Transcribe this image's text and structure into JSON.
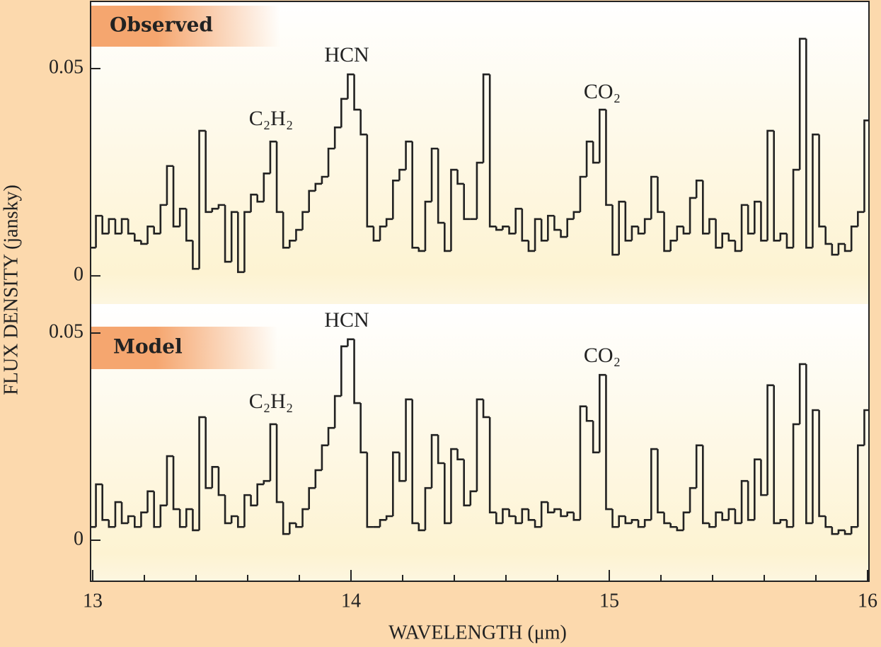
{
  "chart_data": [
    {
      "type": "line",
      "label": "Observed",
      "ylabel": "FLUX DENSITY (jansky)",
      "ylim": [
        -0.0068,
        0.0662
      ],
      "yticks": [
        0,
        0.05
      ],
      "color": "#222222",
      "annotations": [
        "HCN",
        "C₂H₂",
        "CO₂"
      ],
      "x": [
        13,
        13.025,
        13.05,
        13.075,
        13.1,
        13.125,
        13.15,
        13.175,
        13.2,
        13.225,
        13.25,
        13.275,
        13.3,
        13.325,
        13.35,
        13.375,
        13.4,
        13.425,
        13.45,
        13.475,
        13.5,
        13.525,
        13.55,
        13.575,
        13.6,
        13.625,
        13.65,
        13.675,
        13.7,
        13.725,
        13.75,
        13.775,
        13.8,
        13.825,
        13.85,
        13.875,
        13.9,
        13.925,
        13.95,
        13.975,
        14,
        14.025,
        14.05,
        14.075,
        14.1,
        14.125,
        14.15,
        14.175,
        14.2,
        14.225,
        14.25,
        14.275,
        14.3,
        14.325,
        14.35,
        14.375,
        14.4,
        14.425,
        14.45,
        14.475,
        14.5,
        14.525,
        14.55,
        14.575,
        14.6,
        14.625,
        14.65,
        14.675,
        14.7,
        14.725,
        14.75,
        14.775,
        14.8,
        14.825,
        14.85,
        14.875,
        14.9,
        14.925,
        14.95,
        14.975,
        15,
        15.025,
        15.05,
        15.075,
        15.1,
        15.125,
        15.15,
        15.175,
        15.2,
        15.225,
        15.25,
        15.275,
        15.3,
        15.325,
        15.35,
        15.375,
        15.4,
        15.425,
        15.45,
        15.475,
        15.5,
        15.525,
        15.55,
        15.575,
        15.6,
        15.625,
        15.65,
        15.675,
        15.7,
        15.725,
        15.75,
        15.775,
        15.8,
        15.825,
        15.85,
        15.875,
        15.9,
        15.925,
        15.95,
        15.975,
        16
      ],
      "values": [
        0.0068,
        0.0145,
        0.0102,
        0.0137,
        0.0102,
        0.0137,
        0.0102,
        0.0085,
        0.0077,
        0.0119,
        0.0102,
        0.0171,
        0.0265,
        0.0119,
        0.0162,
        0.0085,
        0.0017,
        0.035,
        0.0154,
        0.0162,
        0.0171,
        0.0034,
        0.0154,
        0.0009,
        0.0154,
        0.0196,
        0.0179,
        0.0247,
        0.0324,
        0.0154,
        0.0068,
        0.0085,
        0.0111,
        0.0154,
        0.0205,
        0.0222,
        0.0239,
        0.0307,
        0.0358,
        0.0427,
        0.0486,
        0.0401,
        0.0341,
        0.0119,
        0.0085,
        0.0119,
        0.0137,
        0.023,
        0.0256,
        0.0324,
        0.0068,
        0.006,
        0.0179,
        0.0307,
        0.0128,
        0.006,
        0.0256,
        0.0222,
        0.0137,
        0.0137,
        0.0273,
        0.0486,
        0.0119,
        0.0111,
        0.0119,
        0.0102,
        0.0162,
        0.0085,
        0.006,
        0.0137,
        0.0085,
        0.0145,
        0.0111,
        0.0094,
        0.0137,
        0.0154,
        0.0239,
        0.0324,
        0.0273,
        0.0401,
        0.0171,
        0.0051,
        0.0179,
        0.0085,
        0.0119,
        0.0102,
        0.0137,
        0.0239,
        0.0154,
        0.006,
        0.0085,
        0.0119,
        0.0102,
        0.0188,
        0.023,
        0.0102,
        0.0137,
        0.0068,
        0.0102,
        0.0085,
        0.006,
        0.0171,
        0.0102,
        0.0179,
        0.0085,
        0.035,
        0.0085,
        0.0102,
        0.0068,
        0.0256,
        0.0572,
        0.0068,
        0.0341,
        0.0119,
        0.0077,
        0.0051,
        0.0077,
        0.006,
        0.0119,
        0.0154,
        0.0375
      ]
    },
    {
      "type": "line",
      "label": "Model",
      "xlabel": "WAVELENGTH (μm)",
      "xlim": [
        13,
        16
      ],
      "xticks": [
        13,
        14,
        15,
        16
      ],
      "xminor_ticks": [
        13.2,
        13.4,
        13.6,
        13.8,
        14.2,
        14.4,
        14.6,
        14.8,
        15.2,
        15.4,
        15.6,
        15.8
      ],
      "ylim": [
        -0.0099,
        0.057
      ],
      "yticks": [
        0,
        0.05
      ],
      "color": "#222222",
      "annotations": [
        "HCN",
        "C₂H₂",
        "CO₂"
      ],
      "x": [
        13,
        13.025,
        13.05,
        13.075,
        13.1,
        13.125,
        13.15,
        13.175,
        13.2,
        13.225,
        13.25,
        13.275,
        13.3,
        13.325,
        13.35,
        13.375,
        13.4,
        13.425,
        13.45,
        13.475,
        13.5,
        13.525,
        13.55,
        13.575,
        13.6,
        13.625,
        13.65,
        13.675,
        13.7,
        13.725,
        13.75,
        13.775,
        13.8,
        13.825,
        13.85,
        13.875,
        13.9,
        13.925,
        13.95,
        13.975,
        14,
        14.025,
        14.05,
        14.075,
        14.1,
        14.125,
        14.15,
        14.175,
        14.2,
        14.225,
        14.25,
        14.275,
        14.3,
        14.325,
        14.35,
        14.375,
        14.4,
        14.425,
        14.45,
        14.475,
        14.5,
        14.525,
        14.55,
        14.575,
        14.6,
        14.625,
        14.65,
        14.675,
        14.7,
        14.725,
        14.75,
        14.775,
        14.8,
        14.825,
        14.85,
        14.875,
        14.9,
        14.925,
        14.95,
        14.975,
        15,
        15.025,
        15.05,
        15.075,
        15.1,
        15.125,
        15.15,
        15.175,
        15.2,
        15.225,
        15.25,
        15.275,
        15.3,
        15.325,
        15.35,
        15.375,
        15.4,
        15.425,
        15.45,
        15.475,
        15.5,
        15.525,
        15.55,
        15.575,
        15.6,
        15.625,
        15.65,
        15.675,
        15.7,
        15.725,
        15.75,
        15.775,
        15.8,
        15.825,
        15.85,
        15.875,
        15.9,
        15.925,
        15.95,
        15.975,
        16
      ],
      "values": [
        0.0032,
        0.0135,
        0.0049,
        0.0032,
        0.0092,
        0.0041,
        0.0058,
        0.0032,
        0.0067,
        0.0118,
        0.0032,
        0.0084,
        0.0203,
        0.0075,
        0.0032,
        0.0075,
        0.0024,
        0.0297,
        0.0126,
        0.0177,
        0.0109,
        0.0041,
        0.0058,
        0.0032,
        0.0109,
        0.0084,
        0.0135,
        0.0143,
        0.028,
        0.0092,
        0.0015,
        0.0041,
        0.0032,
        0.0075,
        0.0126,
        0.0169,
        0.0229,
        0.0271,
        0.0348,
        0.0468,
        0.0485,
        0.0331,
        0.0212,
        0.0032,
        0.0032,
        0.0049,
        0.0058,
        0.0212,
        0.0143,
        0.034,
        0.0041,
        0.0024,
        0.0126,
        0.0254,
        0.0186,
        0.0041,
        0.022,
        0.0195,
        0.0084,
        0.0118,
        0.034,
        0.0297,
        0.0067,
        0.0041,
        0.0075,
        0.0058,
        0.0041,
        0.0075,
        0.0049,
        0.0032,
        0.0092,
        0.0067,
        0.0075,
        0.0058,
        0.0067,
        0.0049,
        0.0323,
        0.0288,
        0.0212,
        0.0399,
        0.0075,
        0.0032,
        0.0058,
        0.0041,
        0.0049,
        0.0032,
        0.0049,
        0.022,
        0.0067,
        0.0041,
        0.0032,
        0.0024,
        0.0067,
        0.0126,
        0.0229,
        0.0041,
        0.0032,
        0.0067,
        0.0049,
        0.0075,
        0.0041,
        0.0143,
        0.0049,
        0.0195,
        0.0109,
        0.0374,
        0.0041,
        0.0049,
        0.0032,
        0.028,
        0.0425,
        0.0041,
        0.0314,
        0.0058,
        0.0032,
        0.0015,
        0.0024,
        0.0015,
        0.0032,
        0.0229,
        0.0314
      ]
    }
  ]
}
